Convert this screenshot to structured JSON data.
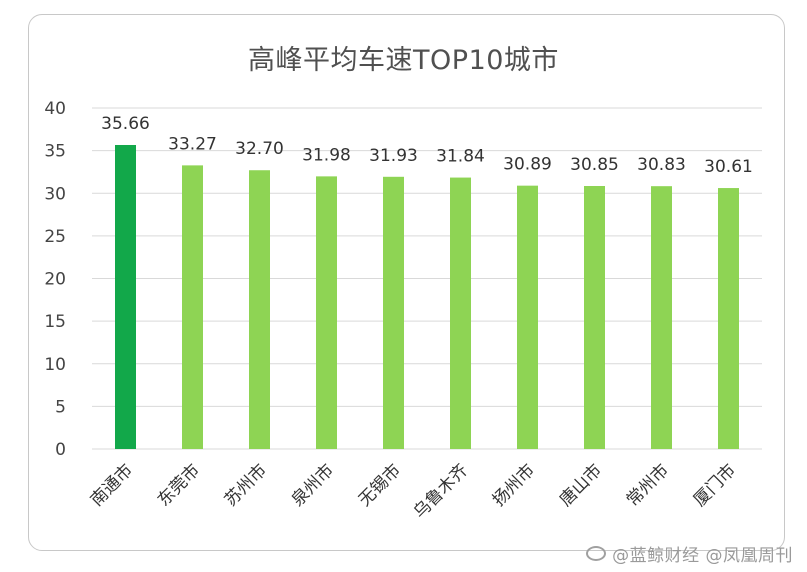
{
  "chart_data": {
    "type": "bar",
    "title": "高峰平均车速TOP10城市",
    "categories": [
      "南通市",
      "东莞市",
      "苏州市",
      "泉州市",
      "无锡市",
      "乌鲁木齐",
      "扬州市",
      "唐山市",
      "常州市",
      "厦门市"
    ],
    "values": [
      35.66,
      33.27,
      32.7,
      31.98,
      31.93,
      31.84,
      30.89,
      30.85,
      30.83,
      30.61
    ],
    "value_labels": [
      "35.66",
      "33.27",
      "32.70",
      "31.98",
      "31.93",
      "31.84",
      "30.89",
      "30.85",
      "30.83",
      "30.61"
    ],
    "ylim": [
      0,
      40
    ],
    "yticks": [
      0,
      5,
      10,
      15,
      20,
      25,
      30,
      35,
      40
    ],
    "xlabel": "",
    "ylabel": "",
    "grid": true,
    "legend": "none",
    "colors": {
      "highlight": "#12a84a",
      "bar": "#8ed454",
      "grid": "#d9d9d9"
    }
  },
  "watermark": {
    "text": "@蓝鲸财经 @凤凰周刊"
  }
}
